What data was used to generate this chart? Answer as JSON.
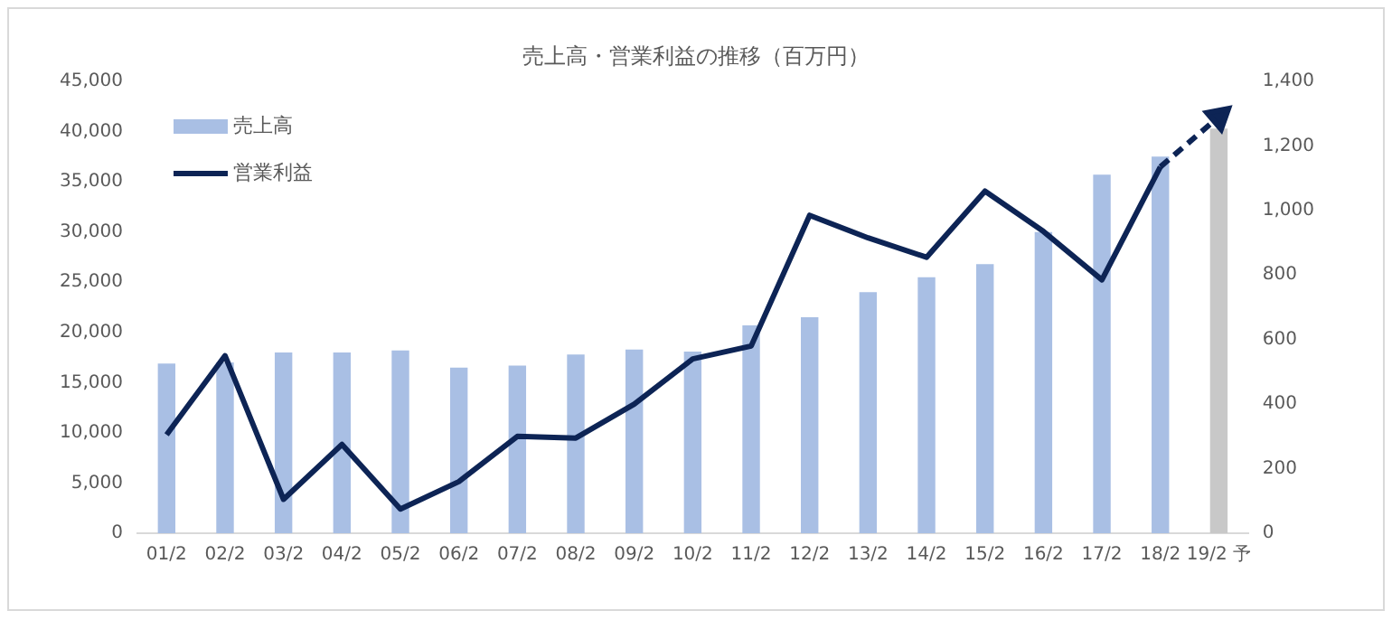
{
  "chart_data": {
    "type": "bar",
    "title": "売上高・営業利益の推移（百万円）",
    "categories": [
      "01/2",
      "02/2",
      "03/2",
      "04/2",
      "05/2",
      "06/2",
      "07/2",
      "08/2",
      "09/2",
      "10/2",
      "11/2",
      "12/2",
      "13/2",
      "14/2",
      "15/2",
      "16/2",
      "17/2",
      "18/2",
      "19/2 予"
    ],
    "series": [
      {
        "name": "売上高",
        "colors": [
          "#a9bfe4",
          "#a9bfe4",
          "#a9bfe4",
          "#a9bfe4",
          "#a9bfe4",
          "#a9bfe4",
          "#a9bfe4",
          "#a9bfe4",
          "#a9bfe4",
          "#a9bfe4",
          "#a9bfe4",
          "#a9bfe4",
          "#a9bfe4",
          "#a9bfe4",
          "#a9bfe4",
          "#a9bfe4",
          "#a9bfe4",
          "#a9bfe4",
          "#c8c8c8"
        ],
        "values": [
          16900,
          17000,
          18000,
          18000,
          18200,
          16500,
          16700,
          17800,
          18300,
          18100,
          20700,
          21500,
          24000,
          25500,
          26800,
          30000,
          35700,
          37500,
          40300
        ]
      },
      {
        "name": "営業利益",
        "type": "line",
        "axis": "y2",
        "color": "#0d2455",
        "line_style": "solid",
        "marker": "none",
        "values": [
          305,
          550,
          105,
          275,
          75,
          160,
          300,
          295,
          400,
          540,
          580,
          985,
          915,
          855,
          1060,
          935,
          785,
          1135,
          null
        ]
      },
      {
        "type": "line",
        "axis": "y2",
        "color": "#0d2455",
        "line_style": "dashed",
        "marker": "triangle",
        "values": [
          null,
          null,
          null,
          null,
          null,
          null,
          null,
          null,
          null,
          null,
          null,
          null,
          null,
          null,
          null,
          null,
          null,
          1135,
          1290
        ]
      }
    ],
    "ylim": [
      0,
      45000
    ],
    "yticks": [
      0,
      {
        "value": 5000,
        "label": "5,000"
      },
      {
        "value": 10000,
        "label": "10,000"
      },
      {
        "value": 15000,
        "label": "15,000"
      },
      {
        "value": 20000,
        "label": "20,000"
      },
      {
        "value": 25000,
        "label": "25,000"
      },
      {
        "value": 30000,
        "label": "30,000"
      },
      {
        "value": 35000,
        "label": "35,000"
      },
      {
        "value": 40000,
        "label": "40,000"
      },
      {
        "value": 45000,
        "label": "45,000"
      }
    ],
    "y2lim": [
      0,
      1400
    ],
    "y2ticks": [
      0,
      200,
      400,
      600,
      800,
      {
        "value": 1000,
        "label": "1,000"
      },
      {
        "value": 1200,
        "label": "1,200"
      },
      {
        "value": 1400,
        "label": "1,400"
      }
    ],
    "grid": false,
    "legend": "top left"
  }
}
